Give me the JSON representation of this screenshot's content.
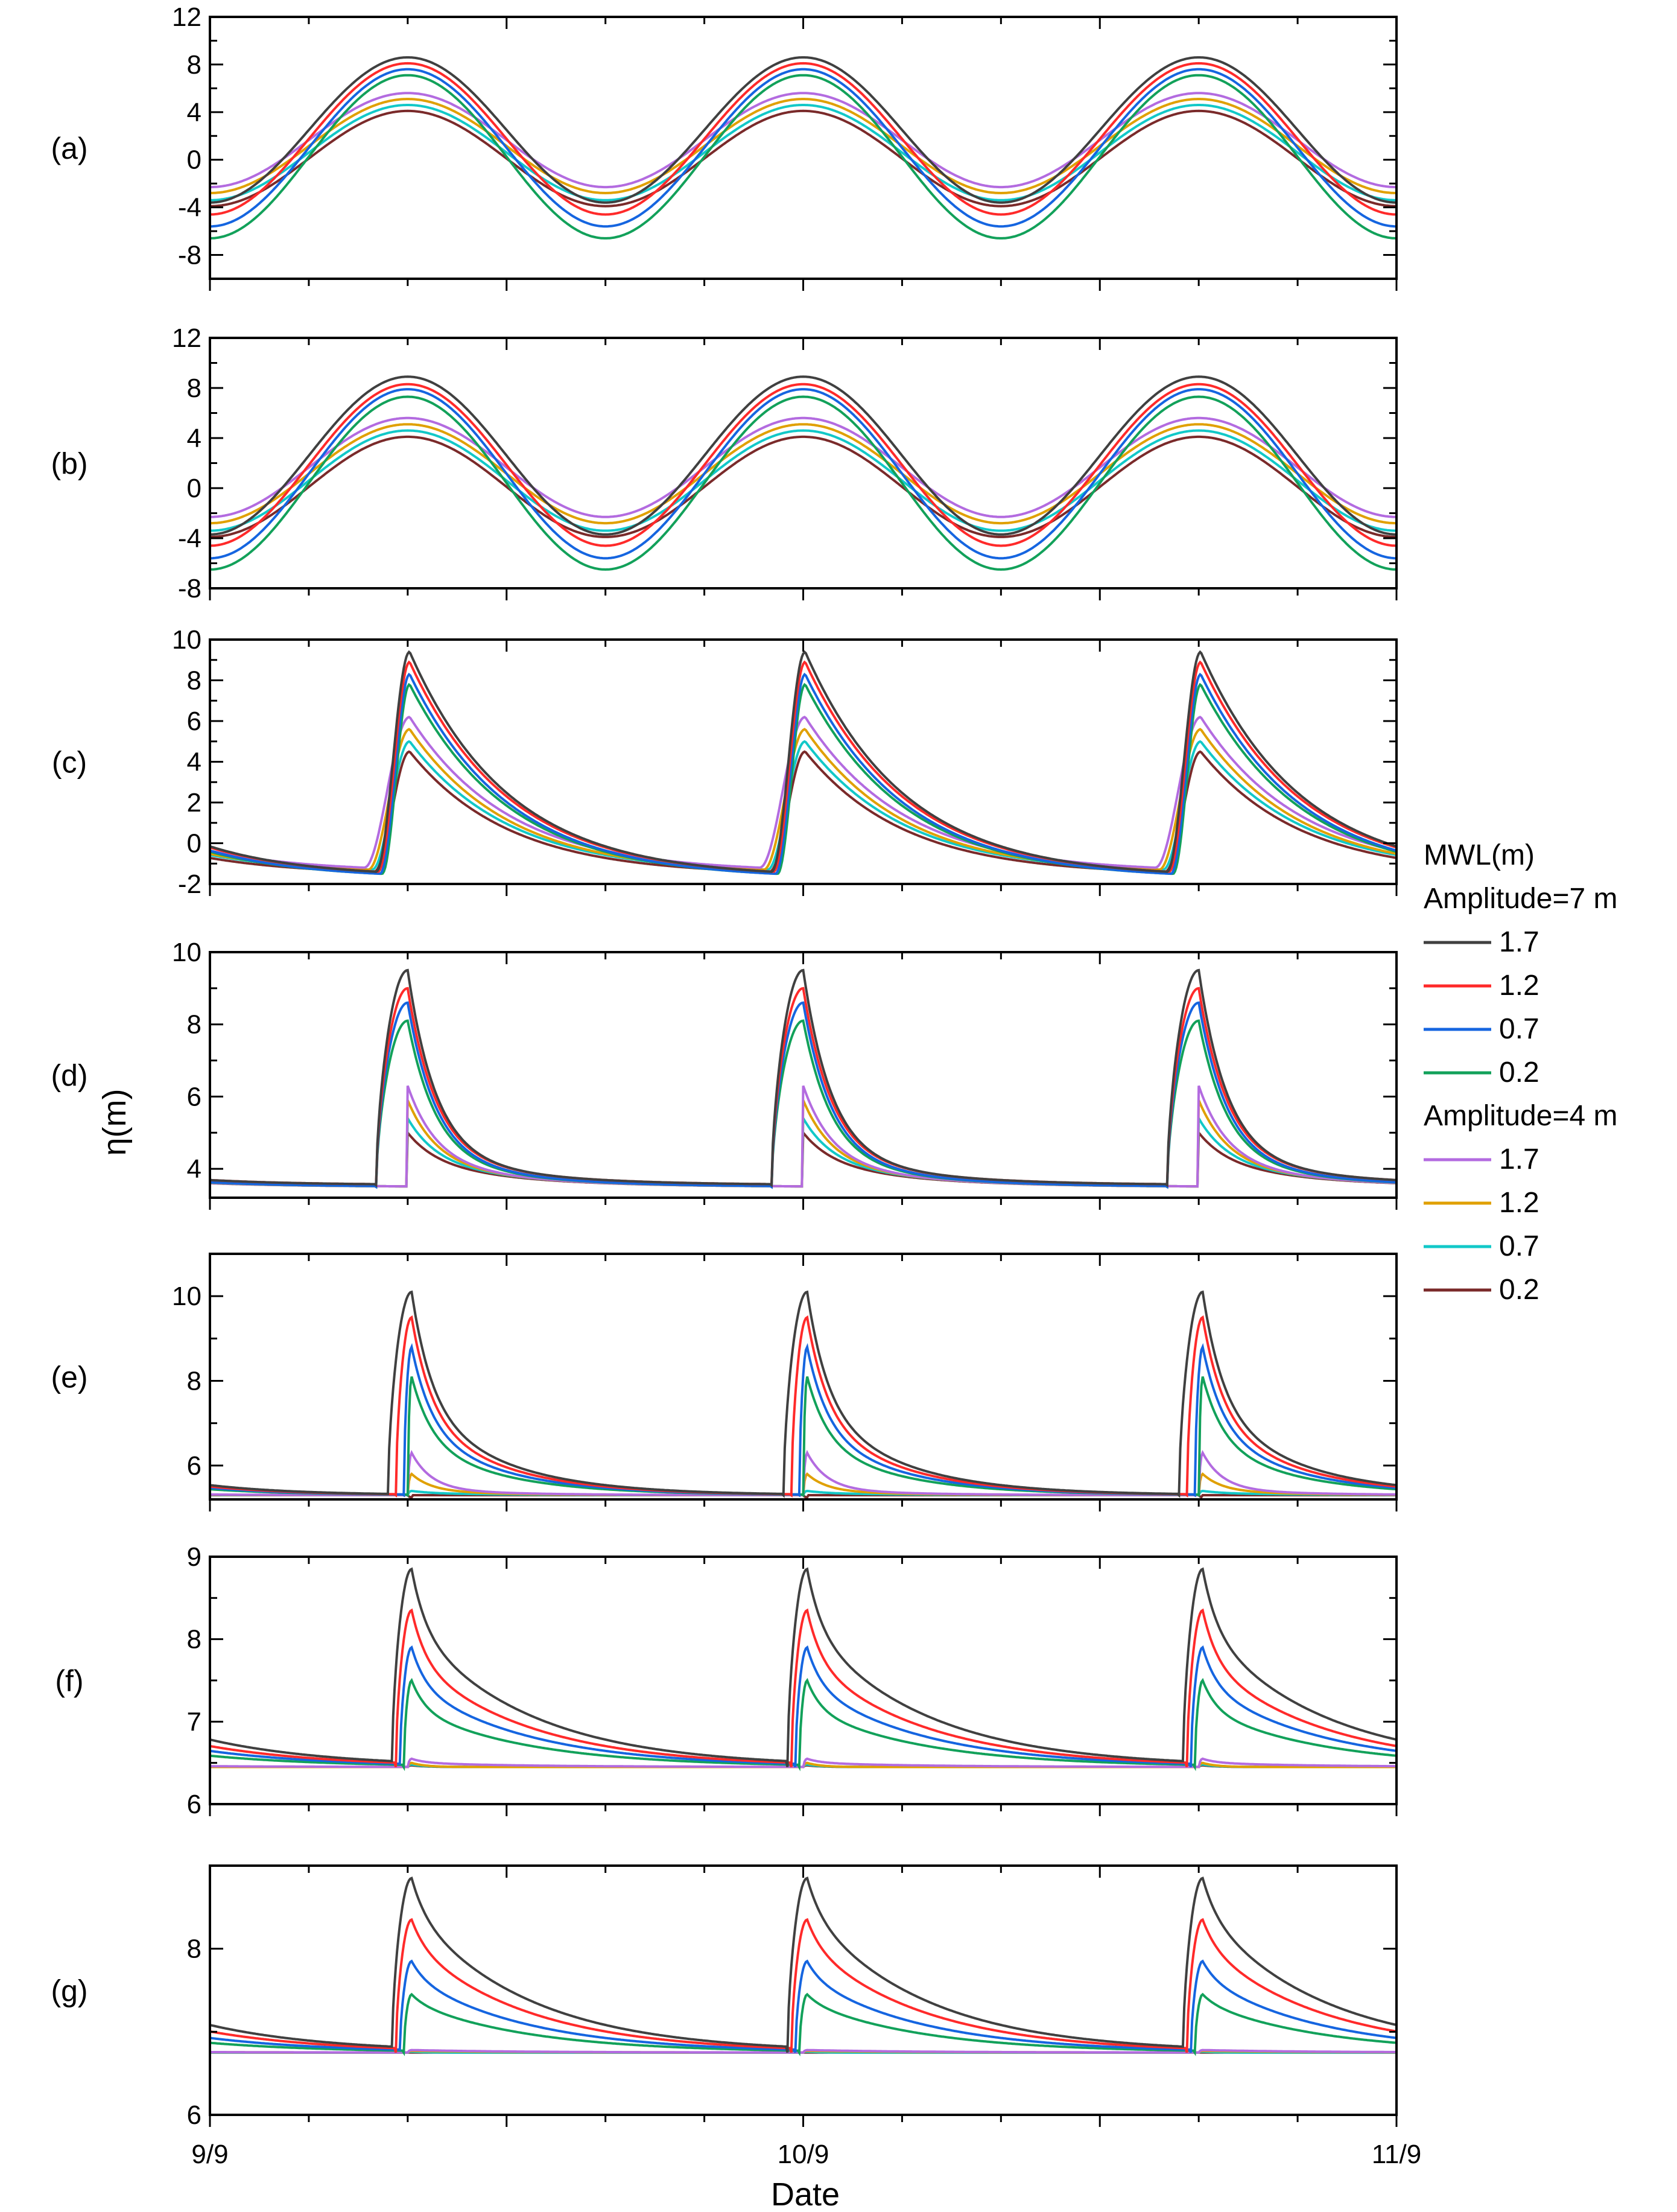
{
  "chart_data": {
    "type": "line",
    "ylabel": "η(m)",
    "xlabel": "Date",
    "x_ticks": [
      "9/9",
      "10/9",
      "11/9"
    ],
    "x_range_days": [
      0,
      2
    ],
    "legend": {
      "title": "MWL(m)",
      "groups": [
        {
          "label": "Amplitude=7 m",
          "items": [
            {
              "label": "1.7",
              "color": "#404040"
            },
            {
              "label": "1.2",
              "color": "#ff2a2a"
            },
            {
              "label": "0.7",
              "color": "#1565e0"
            },
            {
              "label": "0.2",
              "color": "#12a15a"
            }
          ]
        },
        {
          "label": "Amplitude=4 m",
          "items": [
            {
              "label": "1.7",
              "color": "#b36be0"
            },
            {
              "label": "1.2",
              "color": "#e0a000"
            },
            {
              "label": "0.7",
              "color": "#12c8c8"
            },
            {
              "label": "0.2",
              "color": "#7a2a2a"
            }
          ]
        }
      ]
    },
    "series_names": [
      "A7 MWL1.7",
      "A7 MWL1.2",
      "A7 MWL0.7",
      "A7 MWL0.2",
      "A4 MWL1.7",
      "A4 MWL1.2",
      "A4 MWL0.7",
      "A4 MWL0.2"
    ],
    "panels": [
      {
        "label": "(a)",
        "kind": "sine",
        "ylim": [
          -10,
          12
        ],
        "yticks": [
          -8,
          -4,
          0,
          4,
          8,
          12
        ],
        "max": [
          8.6,
          8.1,
          7.6,
          7.1,
          5.6,
          5.1,
          4.6,
          4.1
        ],
        "min": [
          -3.6,
          -4.6,
          -5.6,
          -6.6,
          -2.3,
          -2.8,
          -3.4,
          -3.9
        ]
      },
      {
        "label": "(b)",
        "kind": "sine",
        "ylim": [
          -8,
          12
        ],
        "yticks": [
          -8,
          -4,
          0,
          4,
          8,
          12
        ],
        "max": [
          8.9,
          8.3,
          7.9,
          7.3,
          5.6,
          5.1,
          4.6,
          4.1
        ],
        "min": [
          -3.7,
          -4.6,
          -5.6,
          -6.5,
          -2.3,
          -2.8,
          -3.4,
          -3.9
        ]
      },
      {
        "label": "(c)",
        "kind": "asym",
        "ylim": [
          -2,
          10
        ],
        "yticks": [
          -2,
          0,
          2,
          4,
          6,
          8,
          10
        ],
        "max": [
          9.4,
          8.9,
          8.3,
          7.8,
          6.2,
          5.6,
          5.0,
          4.5
        ],
        "min": [
          -1.4,
          -1.4,
          -1.5,
          -1.5,
          -1.2,
          -1.3,
          -1.3,
          -1.4
        ],
        "rise_start": [
          0.42,
          0.425,
          0.43,
          0.435,
          0.39,
          0.4,
          0.41,
          0.415
        ],
        "peak_at": 0.505,
        "decay": 0.25
      },
      {
        "label": "(d)",
        "kind": "flat",
        "ylim": [
          3.2,
          10
        ],
        "yticks": [
          4,
          6,
          8,
          10
        ],
        "max": [
          9.5,
          9.0,
          8.6,
          8.1,
          6.3,
          5.9,
          5.4,
          5.0
        ],
        "base": [
          3.55,
          3.55,
          3.5,
          3.5,
          3.5,
          3.5,
          3.5,
          3.5
        ],
        "tail": [
          1.0,
          1.0,
          0.95,
          0.9,
          0.8,
          0.8,
          0.8,
          0.75
        ],
        "rise_start": [
          0.42,
          0.42,
          0.42,
          0.42,
          0.5,
          0.5,
          0.5,
          0.5
        ],
        "peak_at": 0.5,
        "decay": 0.07,
        "tail_decay": 0.25
      },
      {
        "label": "(e)",
        "kind": "flat",
        "ylim": [
          5.2,
          11
        ],
        "yticks": [
          6,
          8,
          10
        ],
        "max": [
          10.1,
          9.5,
          8.8,
          8.1,
          6.3,
          5.8,
          5.4,
          5.25
        ],
        "base": [
          5.3,
          5.3,
          5.3,
          5.3,
          5.3,
          5.3,
          5.3,
          5.3
        ],
        "tail": [
          2.2,
          1.9,
          1.6,
          1.3,
          0.15,
          0.1,
          0.05,
          0.0
        ],
        "rise_start": [
          0.45,
          0.47,
          0.49,
          0.5,
          0.5,
          0.5,
          0.5,
          0.5
        ],
        "peak_at": 0.51,
        "decay": 0.05,
        "tail_decay": 0.22
      },
      {
        "label": "(f)",
        "kind": "flat",
        "ylim": [
          6,
          9
        ],
        "yticks": [
          6,
          7,
          8,
          9
        ],
        "max": [
          8.85,
          8.35,
          7.9,
          7.5,
          6.55,
          6.5,
          6.48,
          6.47
        ],
        "base": [
          6.45,
          6.45,
          6.45,
          6.45,
          6.45,
          6.45,
          6.45,
          6.45
        ],
        "tail": [
          1.7,
          1.3,
          1.0,
          0.7,
          0.05,
          0.0,
          0.0,
          0.0
        ],
        "rise_start": [
          0.46,
          0.47,
          0.48,
          0.49,
          0.5,
          0.5,
          0.5,
          0.5
        ],
        "peak_at": 0.51,
        "decay": 0.035,
        "tail_decay": 0.3
      },
      {
        "label": "(g)",
        "kind": "flat",
        "ylim": [
          6,
          9
        ],
        "yticks": [
          6,
          8
        ],
        "max": [
          8.85,
          8.35,
          7.85,
          7.45,
          6.78,
          6.77,
          6.76,
          6.75
        ],
        "base": [
          6.75,
          6.75,
          6.75,
          6.75,
          6.75,
          6.75,
          6.75,
          6.75
        ],
        "tail": [
          1.7,
          1.3,
          0.9,
          0.6,
          0.03,
          0.02,
          0.0,
          0.0
        ],
        "rise_start": [
          0.46,
          0.47,
          0.48,
          0.49,
          0.5,
          0.5,
          0.5,
          0.5
        ],
        "peak_at": 0.51,
        "decay": 0.035,
        "tail_decay": 0.3
      }
    ]
  }
}
